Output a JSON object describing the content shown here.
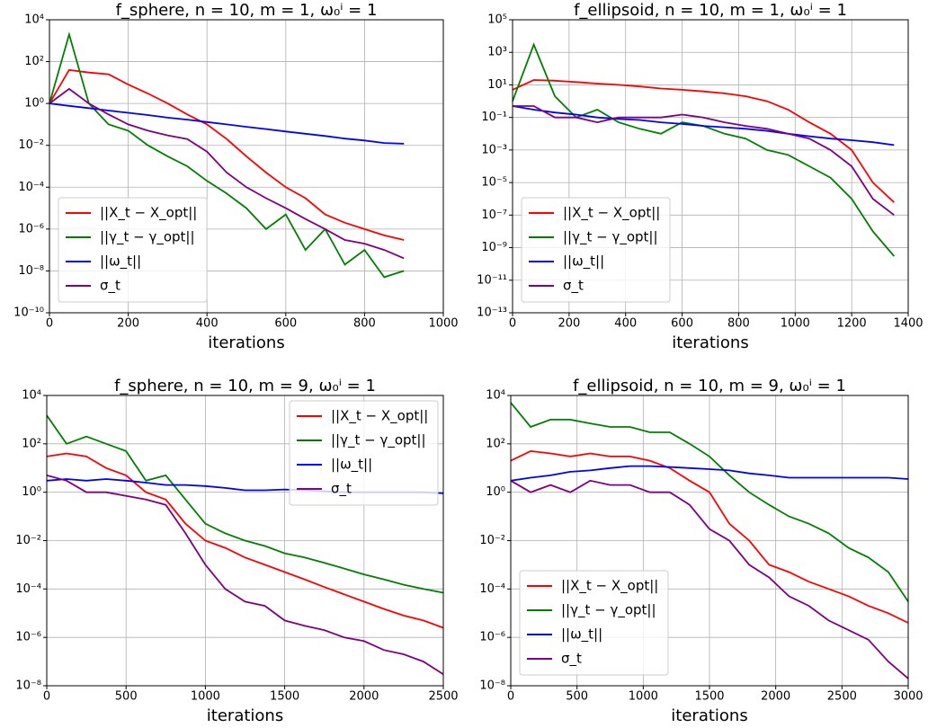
{
  "chart_data": [
    {
      "type": "line",
      "title": "f_sphere, n = 10, m = 1, ω₀ⁱ = 1",
      "xlabel": "iterations",
      "yscale": "log",
      "grid": true,
      "legend": "lower left",
      "xlim": [
        0,
        1000
      ],
      "xticks": [
        0,
        200,
        400,
        600,
        800,
        1000
      ],
      "ylim": [
        1e-10,
        10000
      ],
      "yticks": [
        {
          "value": 1e-10,
          "label": "10⁻¹⁰"
        },
        {
          "value": 1e-08,
          "label": "10⁻⁸"
        },
        {
          "value": 1e-06,
          "label": "10⁻⁶"
        },
        {
          "value": 0.0001,
          "label": "10⁻⁴"
        },
        {
          "value": 0.01,
          "label": "10⁻²"
        },
        {
          "value": 1,
          "label": "10⁰"
        },
        {
          "value": 100,
          "label": "10²"
        },
        {
          "value": 10000,
          "label": "10⁴"
        }
      ],
      "x": [
        0,
        50,
        100,
        150,
        200,
        250,
        300,
        350,
        400,
        450,
        500,
        550,
        600,
        650,
        700,
        750,
        800,
        850,
        900
      ],
      "series": [
        {
          "name": "||X_t − X_opt||",
          "color": "#ff0000",
          "values": [
            1,
            40,
            30,
            25,
            8,
            3,
            1,
            0.3,
            0.1,
            0.02,
            0.003,
            0.0005,
            0.0001,
            3e-05,
            5e-06,
            2e-06,
            1e-06,
            5e-07,
            3e-07
          ]
        },
        {
          "name": "||γ_t − γ_opt||",
          "color": "#008000",
          "values": [
            1,
            2000,
            1,
            0.1,
            0.05,
            0.01,
            0.003,
            0.001,
            0.0002,
            5e-05,
            1e-05,
            1e-06,
            5e-06,
            1e-07,
            1e-06,
            2e-08,
            1e-07,
            5e-09,
            1e-08
          ]
        },
        {
          "name": "||ω_t||",
          "color": "#0000ff",
          "values": [
            1,
            0.77,
            0.6,
            0.46,
            0.36,
            0.28,
            0.21,
            0.17,
            0.13,
            0.1,
            0.077,
            0.06,
            0.046,
            0.036,
            0.028,
            0.021,
            0.017,
            0.013,
            0.012
          ]
        },
        {
          "name": "σ_t",
          "color": "#800080",
          "values": [
            1,
            5,
            1,
            0.3,
            0.1,
            0.05,
            0.03,
            0.02,
            0.005,
            0.0005,
            0.0001,
            3e-05,
            1e-05,
            3e-06,
            1e-06,
            3e-07,
            2e-07,
            1e-07,
            4e-08
          ]
        }
      ]
    },
    {
      "type": "line",
      "title": "f_ellipsoid, n = 10, m = 1, ω₀ⁱ = 1",
      "xlabel": "iterations",
      "yscale": "log",
      "grid": true,
      "legend": "lower left",
      "xlim": [
        0,
        1400
      ],
      "xticks": [
        0,
        200,
        400,
        600,
        800,
        1000,
        1200,
        1400
      ],
      "ylim": [
        1e-13,
        100000
      ],
      "yticks": [
        {
          "value": 1e-13,
          "label": "10⁻¹³"
        },
        {
          "value": 1e-11,
          "label": "10⁻¹¹"
        },
        {
          "value": 1e-09,
          "label": "10⁻⁹"
        },
        {
          "value": 1e-07,
          "label": "10⁻⁷"
        },
        {
          "value": 1e-05,
          "label": "10⁻⁵"
        },
        {
          "value": 0.001,
          "label": "10⁻³"
        },
        {
          "value": 0.1,
          "label": "10⁻¹"
        },
        {
          "value": 10,
          "label": "10¹"
        },
        {
          "value": 1000,
          "label": "10³"
        },
        {
          "value": 100000,
          "label": "10⁵"
        }
      ],
      "x": [
        0,
        75,
        150,
        225,
        300,
        375,
        450,
        525,
        600,
        675,
        750,
        825,
        900,
        975,
        1050,
        1125,
        1200,
        1275,
        1350
      ],
      "series": [
        {
          "name": "||X_t − X_opt||",
          "color": "#ff0000",
          "values": [
            5,
            20,
            18,
            15,
            12,
            10,
            8,
            6,
            5,
            4,
            3,
            2,
            1,
            0.3,
            0.05,
            0.01,
            0.001,
            1e-05,
            6e-07
          ]
        },
        {
          "name": "||γ_t − γ_opt||",
          "color": "#008000",
          "values": [
            1,
            3000,
            2,
            0.1,
            0.3,
            0.05,
            0.02,
            0.01,
            0.05,
            0.03,
            0.01,
            0.005,
            0.001,
            0.0005,
            0.0001,
            2e-05,
            1e-06,
            1e-08,
            3e-10
          ]
        },
        {
          "name": "||ω_t||",
          "color": "#0000ff",
          "values": [
            0.5,
            0.3,
            0.2,
            0.15,
            0.1,
            0.08,
            0.07,
            0.05,
            0.04,
            0.03,
            0.025,
            0.02,
            0.015,
            0.01,
            0.007,
            0.005,
            0.004,
            0.003,
            0.002
          ]
        },
        {
          "name": "σ_t",
          "color": "#800080",
          "values": [
            0.5,
            0.5,
            0.1,
            0.1,
            0.05,
            0.1,
            0.1,
            0.1,
            0.15,
            0.1,
            0.05,
            0.03,
            0.02,
            0.01,
            0.005,
            0.001,
            0.0001,
            1e-06,
            1e-07
          ]
        }
      ]
    },
    {
      "type": "line",
      "title": "f_sphere, n = 10, m = 9, ω₀ⁱ = 1",
      "xlabel": "iterations",
      "yscale": "log",
      "grid": true,
      "legend": "upper right",
      "xlim": [
        0,
        2500
      ],
      "xticks": [
        0,
        500,
        1000,
        1500,
        2000,
        2500
      ],
      "ylim": [
        1e-08,
        10000
      ],
      "yticks": [
        {
          "value": 1e-08,
          "label": "10⁻⁸"
        },
        {
          "value": 1e-06,
          "label": "10⁻⁶"
        },
        {
          "value": 0.0001,
          "label": "10⁻⁴"
        },
        {
          "value": 0.01,
          "label": "10⁻²"
        },
        {
          "value": 1,
          "label": "10⁰"
        },
        {
          "value": 100,
          "label": "10²"
        },
        {
          "value": 10000,
          "label": "10⁴"
        }
      ],
      "x": [
        0,
        125,
        250,
        375,
        500,
        625,
        750,
        875,
        1000,
        1125,
        1250,
        1375,
        1500,
        1625,
        1750,
        1875,
        2000,
        2125,
        2250,
        2375,
        2500
      ],
      "series": [
        {
          "name": "||X_t − X_opt||",
          "color": "#ff0000",
          "values": [
            30,
            40,
            30,
            10,
            5,
            1,
            0.5,
            0.05,
            0.01,
            0.005,
            0.002,
            0.001,
            0.0005,
            0.00025,
            0.00012,
            6e-05,
            3e-05,
            1.5e-05,
            8e-06,
            5e-06,
            2.5e-06
          ]
        },
        {
          "name": "||γ_t − γ_opt||",
          "color": "#008000",
          "values": [
            1500,
            100,
            200,
            100,
            50,
            3,
            5,
            0.5,
            0.05,
            0.02,
            0.01,
            0.006,
            0.003,
            0.002,
            0.0012,
            0.0007,
            0.0004,
            0.00025,
            0.00015,
            0.0001,
            7e-05
          ]
        },
        {
          "name": "||ω_t||",
          "color": "#0000ff",
          "values": [
            3,
            3.5,
            3,
            3.5,
            3,
            2.5,
            2,
            2,
            1.8,
            1.5,
            1.2,
            1.2,
            1.3,
            1.2,
            1.1,
            1,
            1,
            1,
            1,
            1,
            0.9
          ]
        },
        {
          "name": "σ_t",
          "color": "#800080",
          "values": [
            5,
            3,
            1,
            1,
            0.7,
            0.5,
            0.3,
            0.02,
            0.001,
            0.0001,
            3e-05,
            2e-05,
            5e-06,
            3e-06,
            2e-06,
            1e-06,
            7e-07,
            3e-07,
            2e-07,
            1e-07,
            3e-08
          ]
        }
      ]
    },
    {
      "type": "line",
      "title": "f_ellipsoid, n = 10, m = 9, ω₀ⁱ = 1",
      "xlabel": "iterations",
      "yscale": "log",
      "grid": true,
      "legend": "lower left",
      "xlim": [
        0,
        3000
      ],
      "xticks": [
        0,
        500,
        1000,
        1500,
        2000,
        2500,
        3000
      ],
      "ylim": [
        1e-08,
        10000
      ],
      "yticks": [
        {
          "value": 1e-08,
          "label": "10⁻⁸"
        },
        {
          "value": 1e-06,
          "label": "10⁻⁶"
        },
        {
          "value": 0.0001,
          "label": "10⁻⁴"
        },
        {
          "value": 0.01,
          "label": "10⁻²"
        },
        {
          "value": 1,
          "label": "10⁰"
        },
        {
          "value": 100,
          "label": "10²"
        },
        {
          "value": 10000,
          "label": "10⁴"
        }
      ],
      "x": [
        0,
        150,
        300,
        450,
        600,
        750,
        900,
        1050,
        1200,
        1350,
        1500,
        1650,
        1800,
        1950,
        2100,
        2250,
        2400,
        2550,
        2700,
        2850,
        3000
      ],
      "series": [
        {
          "name": "||X_t − X_opt||",
          "color": "#ff0000",
          "values": [
            20,
            50,
            40,
            30,
            40,
            30,
            30,
            20,
            10,
            3,
            1,
            0.05,
            0.01,
            0.001,
            0.0005,
            0.0002,
            0.0001,
            5e-05,
            2e-05,
            1e-05,
            4e-06
          ]
        },
        {
          "name": "||γ_t − γ_opt||",
          "color": "#008000",
          "values": [
            5000,
            500,
            1000,
            1000,
            700,
            500,
            500,
            300,
            300,
            100,
            30,
            5,
            1,
            0.3,
            0.1,
            0.05,
            0.02,
            0.005,
            0.002,
            0.0005,
            3e-05
          ]
        },
        {
          "name": "||ω_t||",
          "color": "#0000ff",
          "values": [
            3,
            4,
            5,
            7,
            8,
            10,
            12,
            12,
            11,
            10,
            9,
            8,
            6,
            5,
            4,
            4,
            4,
            4,
            4,
            4,
            3.5
          ]
        },
        {
          "name": "σ_t",
          "color": "#800080",
          "values": [
            3,
            1,
            2,
            1,
            3,
            2,
            2,
            1,
            1,
            0.3,
            0.03,
            0.01,
            0.001,
            0.0003,
            5e-05,
            2e-05,
            5e-06,
            2e-06,
            8e-07,
            1e-07,
            2e-08
          ]
        }
      ]
    }
  ]
}
